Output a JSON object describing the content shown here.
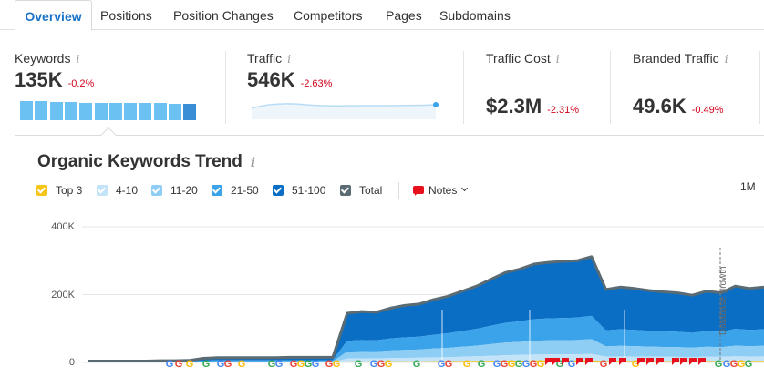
{
  "tabs": [
    {
      "label": "Overview",
      "active": true
    },
    {
      "label": "Positions"
    },
    {
      "label": "Position Changes"
    },
    {
      "label": "Competitors"
    },
    {
      "label": "Pages"
    },
    {
      "label": "Subdomains"
    }
  ],
  "kpis": {
    "keywords": {
      "label": "Keywords",
      "value": "135K",
      "change": "-0.2%",
      "bars": [
        0.95,
        0.95,
        0.9,
        0.9,
        0.85,
        0.85,
        0.85,
        0.85,
        0.85,
        0.85,
        0.8,
        0.8
      ]
    },
    "traffic": {
      "label": "Traffic",
      "value": "546K",
      "change": "-2.63%"
    },
    "traffic_cost": {
      "label": "Traffic Cost",
      "value": "$2.3M",
      "change": "-2.31%"
    },
    "branded_traffic": {
      "label": "Branded Traffic",
      "value": "49.6K",
      "change": "-0.49%"
    }
  },
  "info_glyph": "i",
  "colors": {
    "accent": "#1a73c9",
    "negative": "#d0021b",
    "top3": "#f5c518",
    "r4_10": "#c3e3f8",
    "r11_20": "#8fcef4",
    "r21_50": "#3aa3ea",
    "r51_100": "#0a6fc4",
    "total": "#5a6b73",
    "notes": "#e8101c"
  },
  "chart": {
    "title": "Organic Keywords Trend",
    "legend": [
      {
        "label": "Top 3",
        "color": "#f5c518"
      },
      {
        "label": "4-10",
        "color": "#c3e3f8"
      },
      {
        "label": "11-20",
        "color": "#8fcef4"
      },
      {
        "label": "21-50",
        "color": "#3aa3ea"
      },
      {
        "label": "51-100",
        "color": "#0a6fc4"
      },
      {
        "label": "Total",
        "color": "#5a6b73"
      }
    ],
    "notes_label": "Notes",
    "period": "1M",
    "annotation": "Database growth",
    "google_marker": "G"
  },
  "chart_data": {
    "type": "area",
    "ylim": [
      0,
      400000
    ],
    "yticks": [
      "0",
      "200K",
      "400K"
    ],
    "series_order": [
      "Top 3",
      "4-10",
      "11-20",
      "21-50",
      "51-100"
    ],
    "total": [
      4000,
      4000,
      4000,
      4000,
      4000,
      5000,
      5000,
      6000,
      12000,
      14000,
      14000,
      14000,
      14000,
      14000,
      15000,
      15000,
      15000,
      15000,
      145000,
      150000,
      148000,
      160000,
      168000,
      172000,
      185000,
      195000,
      210000,
      225000,
      245000,
      265000,
      275000,
      290000,
      295000,
      298000,
      300000,
      312000,
      215000,
      222000,
      218000,
      212000,
      208000,
      205000,
      198000,
      210000,
      205000,
      225000,
      218000,
      222000
    ],
    "top3_fraction": 0.02,
    "r4_10_fraction": 0.06,
    "r11_20_fraction": 0.14,
    "r21_50_fraction": 0.22
  }
}
